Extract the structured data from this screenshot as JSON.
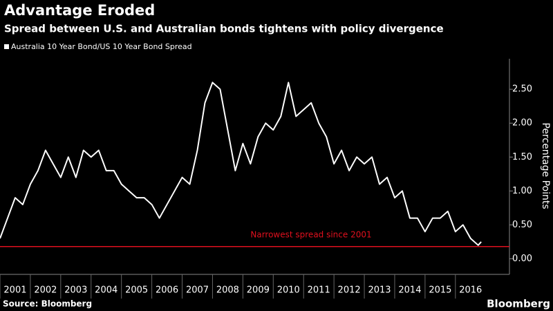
{
  "chart_data": {
    "type": "line",
    "title": "Advantage Eroded",
    "subtitle": "Spread between U.S. and Australian bonds tightens with policy divergence",
    "y_label": "Percentage Points",
    "source": "Source: Bloomberg",
    "brand": "Bloomberg",
    "x": [
      2001.0,
      2001.25,
      2001.5,
      2001.75,
      2002.0,
      2002.25,
      2002.5,
      2002.75,
      2003.0,
      2003.25,
      2003.5,
      2003.75,
      2004.0,
      2004.25,
      2004.5,
      2004.75,
      2005.0,
      2005.25,
      2005.5,
      2005.75,
      2006.0,
      2006.25,
      2006.5,
      2006.75,
      2007.0,
      2007.25,
      2007.5,
      2007.75,
      2008.0,
      2008.25,
      2008.5,
      2008.75,
      2009.0,
      2009.25,
      2009.5,
      2009.75,
      2010.0,
      2010.25,
      2010.5,
      2010.75,
      2011.0,
      2011.25,
      2011.5,
      2011.75,
      2012.0,
      2012.25,
      2012.5,
      2012.75,
      2013.0,
      2013.25,
      2013.5,
      2013.75,
      2014.0,
      2014.25,
      2014.5,
      2014.75,
      2015.0,
      2015.25,
      2015.5,
      2015.75,
      2016.0,
      2016.25,
      2016.5,
      2016.75,
      2016.85
    ],
    "series": [
      {
        "name": "Australia 10 Year Bond/US 10 Year Bond Spread",
        "color": "#ffffff",
        "values": [
          0.3,
          0.6,
          0.9,
          0.8,
          1.1,
          1.3,
          1.6,
          1.4,
          1.2,
          1.5,
          1.2,
          1.6,
          1.5,
          1.6,
          1.3,
          1.3,
          1.1,
          1.0,
          0.9,
          0.9,
          0.8,
          0.6,
          0.8,
          1.0,
          1.2,
          1.1,
          1.6,
          2.3,
          2.6,
          2.5,
          1.9,
          1.3,
          1.7,
          1.4,
          1.8,
          2.0,
          1.9,
          2.1,
          2.6,
          2.1,
          2.2,
          2.3,
          2.0,
          1.8,
          1.4,
          1.6,
          1.3,
          1.5,
          1.4,
          1.5,
          1.1,
          1.2,
          0.9,
          1.0,
          0.6,
          0.6,
          0.4,
          0.6,
          0.6,
          0.7,
          0.4,
          0.5,
          0.3,
          0.2,
          0.25
        ]
      }
    ],
    "xlim": [
      2001,
      2017.78
    ],
    "xticks": [
      2001,
      2002,
      2003,
      2004,
      2005,
      2006,
      2007,
      2008,
      2009,
      2010,
      2011,
      2012,
      2013,
      2014,
      2015,
      2016
    ],
    "ylim": [
      -0.23,
      2.95
    ],
    "yticks": [
      {
        "value": 0,
        "label": "0.00"
      },
      {
        "value": 0.5,
        "label": "0.50"
      },
      {
        "value": 1,
        "label": "1.00"
      },
      {
        "value": 1.5,
        "label": "1.50"
      },
      {
        "value": 2,
        "label": "2.00"
      },
      {
        "value": 2.5,
        "label": "2.50"
      }
    ],
    "reference_line": {
      "value": 0.18,
      "label": "Narrowest spread since 2001",
      "color": "#e0101e"
    }
  }
}
